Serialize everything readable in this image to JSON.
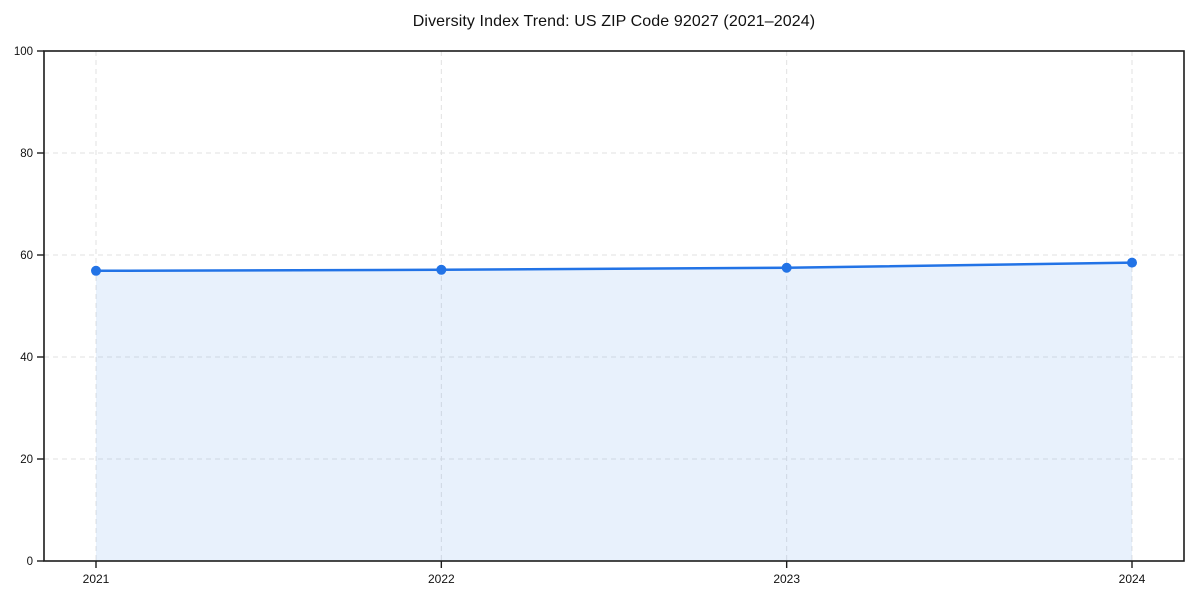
{
  "chart_data": {
    "type": "area",
    "title": "Diversity Index Trend: US ZIP Code 92027 (2021–2024)",
    "categories": [
      "2021",
      "2022",
      "2023",
      "2024"
    ],
    "series": [
      {
        "name": "Diversity Index",
        "values": [
          56.9,
          57.1,
          57.5,
          58.5
        ]
      }
    ],
    "xlabel": "",
    "ylabel": "",
    "ylim": [
      0,
      100
    ],
    "yticks": [
      0,
      20,
      40,
      60,
      80,
      100
    ],
    "ytick_labels": [
      "0",
      "20",
      "40",
      "60",
      "80",
      "100"
    ],
    "grid": "dashed-both-axes",
    "legend_position": "none",
    "colors": {
      "line": "#2273e6",
      "fill_opacity": 0.1,
      "grid": "#e2e2e2",
      "spine": "#1c1c1c",
      "text": "#111111",
      "background": "#ffffff"
    }
  }
}
